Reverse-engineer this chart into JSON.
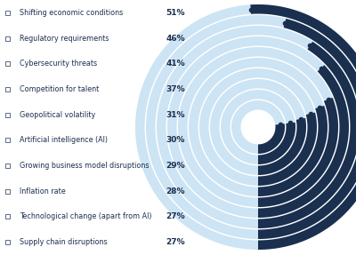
{
  "categories": [
    "Shifting economic conditions",
    "Regulatory requirements",
    "Cybersecurity threats",
    "Competition for talent",
    "Geopolitical volatility",
    "Artificial intelligence (AI)",
    "Growing business model disruptions",
    "Inflation rate",
    "Technological change (apart from AI)",
    "Supply chain disruptions"
  ],
  "values": [
    51,
    46,
    41,
    37,
    31,
    30,
    29,
    28,
    27,
    27
  ],
  "dark_color": "#1b2f4e",
  "light_color": "#cce4f4",
  "background_color": "#ffffff",
  "text_color": "#1b2f4e",
  "figsize": [
    4.0,
    2.87
  ],
  "dpi": 100
}
